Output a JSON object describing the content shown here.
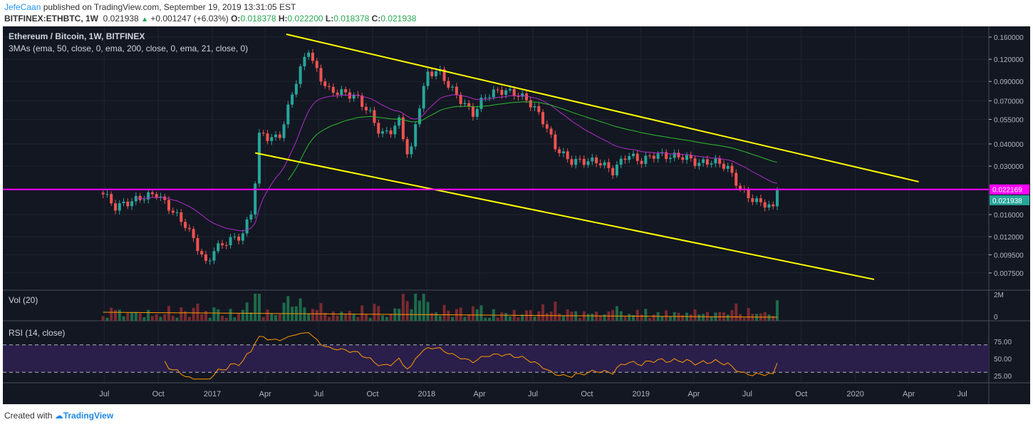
{
  "header": {
    "author": "JefeCaan",
    "published": " published on TradingView.com, September 19, 2019 13:31:05 EST",
    "symbol": "BITFINEX:ETHBTC, 1W",
    "last": "0.021938",
    "change": "+0.001247 (+6.03%)",
    "o_label": "O:",
    "o": "0.018378",
    "h_label": "H:",
    "h": "0.022200",
    "l_label": "L:",
    "l": "0.018378",
    "c_label": "C:",
    "c": "0.021938"
  },
  "legend": {
    "title": "Ethereum / Bitcoin, 1W, BITFINEX",
    "indicator": "3MAs (ema, 50, close, 0, ema, 200, close, 0, ema, 21, close, 0)",
    "volume": "Vol (20)",
    "rsi": "RSI (14, close)"
  },
  "colors": {
    "bg": "#131722",
    "up": "#26a69a",
    "down": "#ef5350",
    "trend": "#ffff00",
    "hline": "#ff00ff",
    "ema21": "#b02cc8",
    "ema50": "#2ebd2e",
    "rsi": "#ff9800",
    "rsi_band": "#2a1f4a"
  },
  "footer": {
    "text": "Created with",
    "brand": "TradingView"
  },
  "chart_data": {
    "type": "candlestick",
    "price_axis": {
      "scale": "log",
      "ticks": [
        "0.160000",
        "0.120000",
        "0.090000",
        "0.070000",
        "0.055000",
        "0.040000",
        "0.030000",
        "0.016000",
        "0.012000",
        "0.009500",
        "0.007500"
      ],
      "ylim": [
        0.0068,
        0.175
      ]
    },
    "price_labels": {
      "hline": "0.022169",
      "last": "0.021938"
    },
    "volume_axis": {
      "ticks": [
        "2M",
        "0"
      ]
    },
    "rsi_axis": {
      "ticks": [
        "75.00",
        "50.00",
        "25.00"
      ],
      "bands": [
        30,
        70
      ]
    },
    "time_ticks": [
      [
        "Jul",
        "2016-07-01"
      ],
      [
        "Oct",
        "2016-10-01"
      ],
      [
        "2017",
        "2017-01-01"
      ],
      [
        "Apr",
        "2017-04-01"
      ],
      [
        "Jul",
        "2017-07-01"
      ],
      [
        "Oct",
        "2017-10-01"
      ],
      [
        "2018",
        "2018-01-01"
      ],
      [
        "Apr",
        "2018-04-01"
      ],
      [
        "Jul",
        "2018-07-01"
      ],
      [
        "Oct",
        "2018-10-01"
      ],
      [
        "2019",
        "2019-01-01"
      ],
      [
        "Apr",
        "2019-04-01"
      ],
      [
        "Jul",
        "2019-07-01"
      ],
      [
        "Oct",
        "2019-10-01"
      ],
      [
        "2020",
        "2020-01-01"
      ],
      [
        "Apr",
        "2020-04-01"
      ],
      [
        "Jul",
        "2020-07-01"
      ]
    ],
    "closes": [
      [
        "2016-06-29",
        0.0214
      ],
      [
        "2016-07-18",
        0.0176
      ],
      [
        "2016-09-04",
        0.02
      ],
      [
        "2016-09-28",
        0.021
      ],
      [
        "2016-10-23",
        0.017
      ],
      [
        "2016-11-16",
        0.014
      ],
      [
        "2016-12-04",
        0.011
      ],
      [
        "2016-12-22",
        0.0083
      ],
      [
        "2017-01-03",
        0.0101
      ],
      [
        "2017-01-28",
        0.0114
      ],
      [
        "2017-02-21",
        0.0122
      ],
      [
        "2017-03-11",
        0.0176
      ],
      [
        "2017-03-23",
        0.048
      ],
      [
        "2017-04-10",
        0.042
      ],
      [
        "2017-04-29",
        0.046
      ],
      [
        "2017-05-17",
        0.078
      ],
      [
        "2017-05-29",
        0.1
      ],
      [
        "2017-06-13",
        0.141
      ],
      [
        "2017-06-22",
        0.112
      ],
      [
        "2017-07-17",
        0.08
      ],
      [
        "2017-08-10",
        0.078
      ],
      [
        "2017-09-03",
        0.074
      ],
      [
        "2017-09-27",
        0.059
      ],
      [
        "2017-10-15",
        0.045
      ],
      [
        "2017-11-03",
        0.048
      ],
      [
        "2017-11-15",
        0.054
      ],
      [
        "2017-12-03",
        0.032
      ],
      [
        "2017-12-15",
        0.057
      ],
      [
        "2018-01-02",
        0.099
      ],
      [
        "2018-01-21",
        0.104
      ],
      [
        "2018-02-08",
        0.085
      ],
      [
        "2018-03-04",
        0.068
      ],
      [
        "2018-03-22",
        0.059
      ],
      [
        "2018-04-09",
        0.074
      ],
      [
        "2018-05-04",
        0.08
      ],
      [
        "2018-05-28",
        0.078
      ],
      [
        "2018-06-21",
        0.071
      ],
      [
        "2018-07-15",
        0.057
      ],
      [
        "2018-08-09",
        0.038
      ],
      [
        "2018-09-02",
        0.032
      ],
      [
        "2018-09-26",
        0.032
      ],
      [
        "2018-10-20",
        0.032
      ],
      [
        "2018-11-14",
        0.028
      ],
      [
        "2018-12-08",
        0.035
      ],
      [
        "2019-01-01",
        0.032
      ],
      [
        "2019-01-25",
        0.035
      ],
      [
        "2019-02-19",
        0.034
      ],
      [
        "2019-03-15",
        0.034
      ],
      [
        "2019-04-08",
        0.031
      ],
      [
        "2019-05-03",
        0.032
      ],
      [
        "2019-05-27",
        0.03
      ],
      [
        "2019-06-20",
        0.022
      ],
      [
        "2019-07-14",
        0.019
      ],
      [
        "2019-08-01",
        0.0184
      ],
      [
        "2019-08-14",
        0.0172
      ],
      [
        "2019-08-26",
        0.0219
      ]
    ],
    "trendlines": [
      {
        "from": [
          "2017-05-07",
          0.166
        ],
        "to": [
          "2020-04-18",
          0.0245
        ]
      },
      {
        "from": [
          "2017-03-15",
          0.0356
        ],
        "to": [
          "2020-02-02",
          0.0069
        ]
      }
    ],
    "hline": 0.022169
  }
}
